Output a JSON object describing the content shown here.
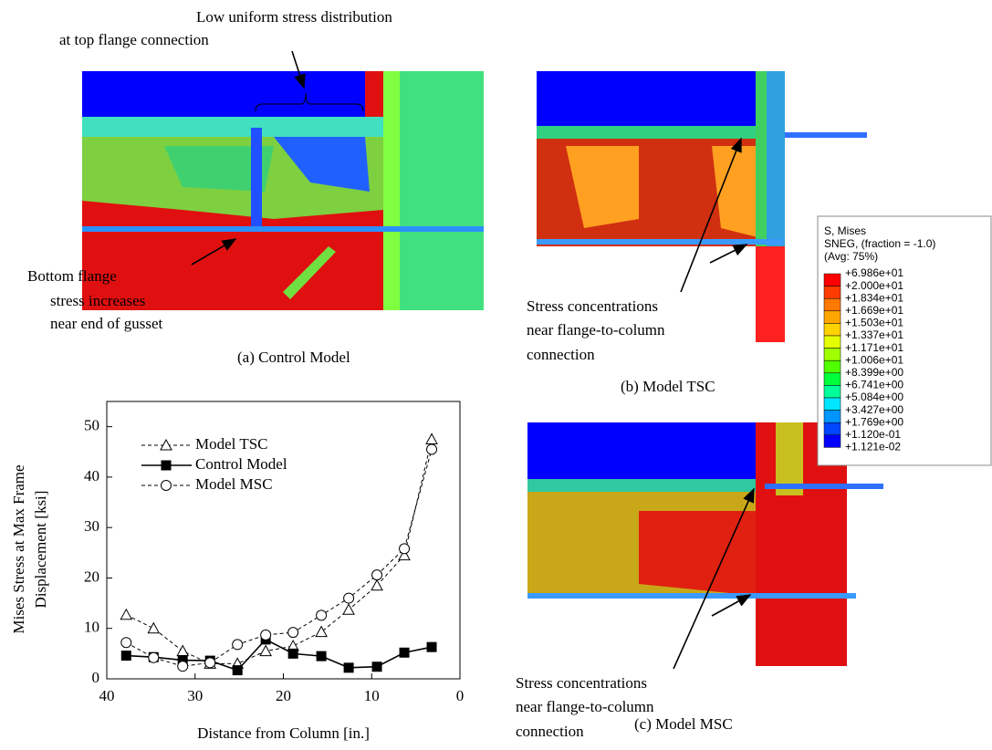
{
  "chart_data": {
    "type": "line",
    "x_label": "Distance from Column [in.]",
    "y_label": [
      "Mises Stress at Max Frame",
      "Displacement [ksi]"
    ],
    "xlim": [
      40,
      0
    ],
    "xticks": [
      40,
      30,
      20,
      10,
      0
    ],
    "ylim": [
      0,
      55
    ],
    "yticks": [
      0,
      10,
      20,
      30,
      40,
      50
    ],
    "x": [
      37.8,
      34.7,
      31.4,
      28.3,
      25.2,
      22.0,
      18.9,
      15.7,
      12.6,
      9.4,
      6.3,
      3.2
    ],
    "series": [
      {
        "name": "Model TSC",
        "color": "#000000",
        "dash": true,
        "marker": "triangle",
        "values": [
          12.7,
          10,
          5.5,
          3,
          3,
          5.5,
          6.5,
          9.3,
          13.7,
          18.5,
          24.5,
          47.5
        ]
      },
      {
        "name": "Control Model",
        "color": "#000000",
        "dash": false,
        "marker": "square",
        "values": [
          4.6,
          4.3,
          3.7,
          3.6,
          1.7,
          7.8,
          5.0,
          4.5,
          2.2,
          2.4,
          5.2,
          6.3
        ]
      },
      {
        "name": "Model MSC",
        "color": "#000000",
        "dash": true,
        "marker": "circle",
        "values": [
          7.2,
          4.2,
          2.5,
          3.2,
          6.8,
          8.7,
          9.2,
          12.6,
          16,
          20.6,
          25.8,
          45.5
        ]
      }
    ]
  },
  "figure": {
    "panel_a": {
      "caption": "(a) Control Model",
      "note_top": [
        "Low uniform stress distribution",
        "at top flange connection"
      ],
      "note_bottom": [
        "Bottom flange",
        "stress increases",
        "near end of gusset"
      ]
    },
    "panel_b": {
      "caption": "(b) Model TSC",
      "note": [
        "Stress concentrations",
        "near flange-to-column",
        "connection"
      ]
    },
    "panel_c": {
      "caption": "(c) Model MSC",
      "note": [
        "Stress concentrations",
        "near flange-to-column",
        "connection"
      ]
    },
    "colorbar": {
      "title": [
        "S, Mises",
        "SNEG, (fraction = -1.0)",
        "(Avg: 75%)"
      ],
      "labels": [
        "+6.986e+01",
        "+2.000e+01",
        "+1.834e+01",
        "+1.669e+01",
        "+1.503e+01",
        "+1.337e+01",
        "+1.171e+01",
        "+1.006e+01",
        "+8.399e+00",
        "+6.741e+00",
        "+5.084e+00",
        "+3.427e+00",
        "+1.769e+00",
        "+1.120e-01",
        "+1.121e-02"
      ],
      "colors": [
        "#ff0000",
        "#ff3c00",
        "#ff7800",
        "#ffa500",
        "#ffd200",
        "#e6ff00",
        "#a0ff00",
        "#50ff00",
        "#00ff3c",
        "#00ff9b",
        "#00e6ff",
        "#0096ff",
        "#0046ff",
        "#0000ff"
      ]
    }
  }
}
